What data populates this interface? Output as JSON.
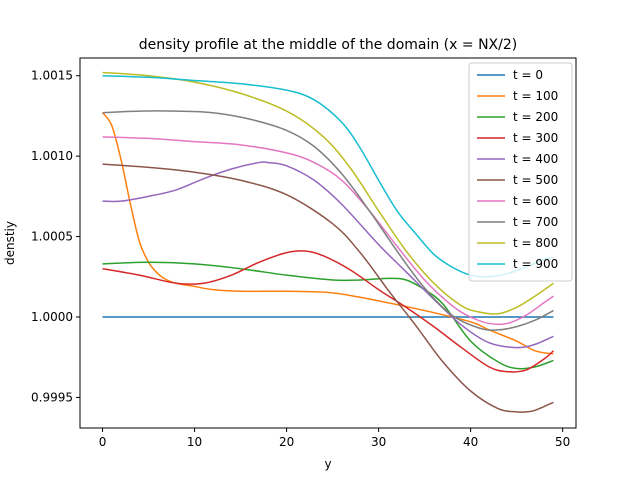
{
  "chart_data": {
    "type": "line",
    "title": "density profile at the middle of the domain (x = NX/2)",
    "xlabel": "y",
    "ylabel": "denstiy",
    "xlim": [
      -2.45,
      51.45
    ],
    "ylim": [
      0.99931,
      1.00161
    ],
    "xticks": [
      0,
      10,
      20,
      30,
      40,
      50
    ],
    "xtick_labels": [
      "0",
      "10",
      "20",
      "30",
      "40",
      "50"
    ],
    "yticks": [
      0.9995,
      1.0,
      1.0005,
      1.001,
      1.0015
    ],
    "ytick_labels": [
      "0.9995",
      "1.0000",
      "1.0005",
      "1.0010",
      "1.0015"
    ],
    "grid": false,
    "legend_position": "top-right",
    "series": [
      {
        "name": "t = 0",
        "color": "#1f77b4",
        "x": [
          0,
          49
        ],
        "y": [
          1.0,
          1.0
        ]
      },
      {
        "name": "t = 100",
        "color": "#ff7f0e",
        "x": [
          0,
          1,
          2,
          3,
          4,
          5,
          6,
          7,
          8,
          10,
          12,
          15,
          20,
          25,
          30,
          35,
          40,
          42,
          45,
          47,
          49
        ],
        "y": [
          1.00127,
          1.00119,
          1.00098,
          1.00071,
          1.00047,
          1.00034,
          1.00027,
          1.00023,
          1.00021,
          1.00019,
          1.00017,
          1.00016,
          1.00016,
          1.00015,
          1.0001,
          1.00004,
          0.99997,
          0.99992,
          0.99985,
          0.99979,
          0.99977
        ]
      },
      {
        "name": "t = 200",
        "color": "#2ca02c",
        "x": [
          0,
          5,
          10,
          15,
          20,
          25,
          28,
          31,
          33,
          35,
          37,
          40,
          43,
          45,
          47,
          49
        ],
        "y": [
          1.00033,
          1.00034,
          1.00033,
          1.0003,
          1.00026,
          1.00023,
          1.00023,
          1.00024,
          1.00023,
          1.00017,
          1.00008,
          0.99985,
          0.99972,
          0.99968,
          0.99969,
          0.99973
        ]
      },
      {
        "name": "t = 300",
        "color": "#d62728",
        "x": [
          0,
          4,
          8,
          11,
          14,
          17,
          20,
          22,
          24,
          27,
          30,
          33,
          36,
          39,
          42,
          44,
          46,
          48,
          49
        ],
        "y": [
          1.0003,
          1.00026,
          1.00021,
          1.00021,
          1.00026,
          1.00034,
          1.0004,
          1.00041,
          1.00038,
          1.00029,
          1.00017,
          1.00006,
          0.99994,
          0.99981,
          0.99969,
          0.99966,
          0.99967,
          0.99974,
          0.99979
        ]
      },
      {
        "name": "t = 400",
        "color": "#9467bd",
        "x": [
          0,
          2,
          5,
          8,
          11,
          14,
          17,
          18,
          20,
          23,
          26,
          30,
          33,
          36,
          39,
          42,
          45,
          47,
          49
        ],
        "y": [
          1.00072,
          1.00072,
          1.00075,
          1.00079,
          1.00086,
          1.00092,
          1.00096,
          1.00096,
          1.00094,
          1.00085,
          1.0007,
          1.00045,
          1.00028,
          1.00011,
          0.99995,
          0.99984,
          0.99981,
          0.99983,
          0.99988
        ]
      },
      {
        "name": "t = 500",
        "color": "#8c564b",
        "x": [
          0,
          5,
          10,
          15,
          20,
          25,
          28,
          31,
          34,
          37,
          40,
          43,
          45,
          46,
          47,
          49
        ],
        "y": [
          1.00095,
          1.00093,
          1.0009,
          1.00085,
          1.00076,
          1.00058,
          1.0004,
          1.00017,
          0.99995,
          0.99972,
          0.99954,
          0.99943,
          0.99941,
          0.99941,
          0.99942,
          0.99947
        ]
      },
      {
        "name": "t = 600",
        "color": "#e377c2",
        "x": [
          0,
          5,
          10,
          15,
          20,
          23,
          26,
          29,
          32,
          35,
          38,
          40,
          42,
          44,
          46,
          48,
          49
        ],
        "y": [
          1.00112,
          1.00111,
          1.00109,
          1.00107,
          1.00102,
          1.00096,
          1.00085,
          1.00066,
          1.00044,
          1.00023,
          1.00007,
          1.0,
          0.99996,
          0.99996,
          1.00001,
          1.00009,
          1.00013
        ]
      },
      {
        "name": "t = 700",
        "color": "#7f7f7f",
        "x": [
          0,
          4,
          8,
          12,
          16,
          20,
          23,
          26,
          29,
          32,
          35,
          38,
          41,
          43,
          45,
          47,
          49
        ],
        "y": [
          1.00127,
          1.00128,
          1.00128,
          1.00127,
          1.00123,
          1.00116,
          1.00106,
          1.00089,
          1.00066,
          1.00041,
          1.00018,
          1.00001,
          0.99993,
          0.99992,
          0.99994,
          0.99998,
          1.00004
        ]
      },
      {
        "name": "t = 800",
        "color": "#bcbd22",
        "x": [
          0,
          5,
          10,
          15,
          20,
          24,
          27,
          30,
          33,
          36,
          39,
          41,
          43,
          45,
          47,
          49
        ],
        "y": [
          1.00152,
          1.0015,
          1.00146,
          1.00139,
          1.00128,
          1.00112,
          1.00092,
          1.00066,
          1.00041,
          1.00021,
          1.00007,
          1.00003,
          1.00002,
          1.00006,
          1.00013,
          1.00021
        ]
      },
      {
        "name": "t = 900",
        "color": "#17becf",
        "x": [
          0,
          5,
          10,
          15,
          20,
          23,
          26,
          28,
          30,
          32,
          34,
          36,
          38,
          40,
          42,
          44,
          46,
          48,
          49
        ],
        "y": [
          1.0015,
          1.00149,
          1.00147,
          1.00145,
          1.00141,
          1.00135,
          1.00121,
          1.00105,
          1.00085,
          1.00066,
          1.00052,
          1.00039,
          1.00031,
          1.00026,
          1.00025,
          1.00027,
          1.00031,
          1.00036,
          1.00037
        ]
      }
    ]
  }
}
